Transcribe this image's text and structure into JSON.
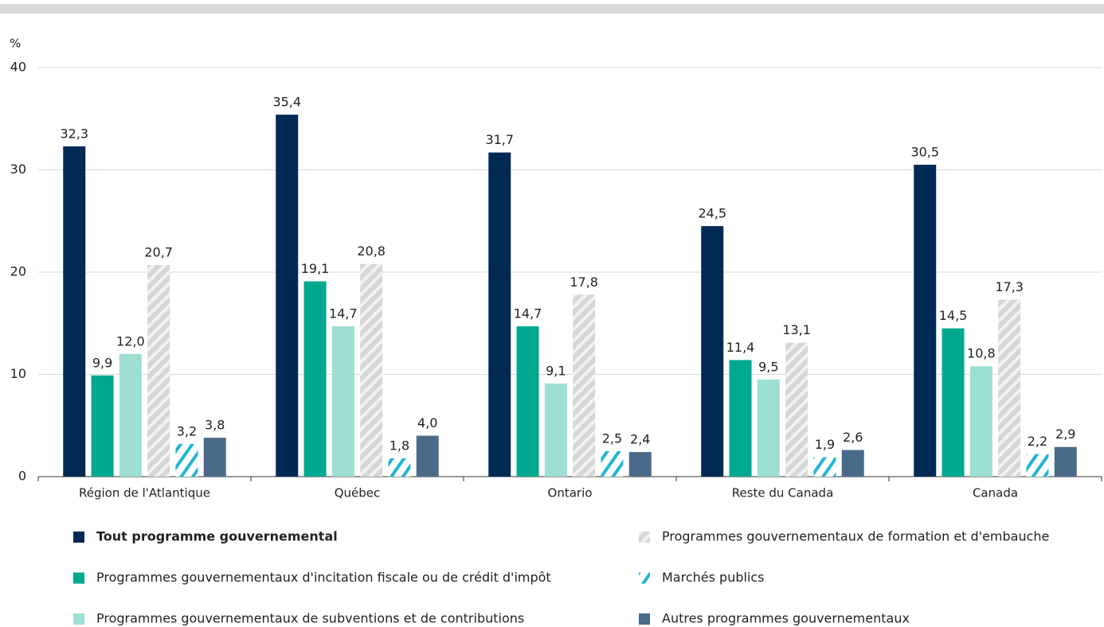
{
  "chart_data": {
    "type": "bar",
    "y_unit": "%",
    "categories": [
      "Région de l'Atlantique",
      "Québec",
      "Ontario",
      "Reste du Canada",
      "Canada"
    ],
    "series": [
      {
        "name": "Tout programme gouvernemental",
        "color": "#002a54",
        "values": [
          32.3,
          35.4,
          31.7,
          24.5,
          30.5
        ],
        "value_labels": [
          "32,3",
          "35,4",
          "31,7",
          "24,5",
          "30,5"
        ]
      },
      {
        "name": "Programmes gouvernementaux d'incitation fiscale ou de crédit d'impôt",
        "color": "#00a88f",
        "values": [
          9.9,
          19.1,
          14.7,
          11.4,
          14.5
        ],
        "value_labels": [
          "9,9",
          "19,1",
          "14,7",
          "11,4",
          "14,5"
        ]
      },
      {
        "name": "Programmes gouvernementaux de subventions et de contributions",
        "color": "#9ddfd3",
        "values": [
          12.0,
          14.7,
          9.1,
          9.5,
          10.8
        ],
        "value_labels": [
          "12,0",
          "14,7",
          "9,1",
          "9,5",
          "10,8"
        ]
      },
      {
        "name": "Programmes gouvernementaux de formation et d'embauche",
        "color": "#d6d6d6",
        "pattern": "hatch",
        "values": [
          20.7,
          20.8,
          17.8,
          13.1,
          17.3
        ],
        "value_labels": [
          "20,7",
          "20,8",
          "17,8",
          "13,1",
          "17,3"
        ]
      },
      {
        "name": "Marchés publics",
        "color": "#1fb6d4",
        "pattern": "hatch-open",
        "values": [
          3.2,
          1.8,
          2.5,
          1.9,
          2.2
        ],
        "value_labels": [
          "3,2",
          "1,8",
          "2,5",
          "1,9",
          "2,2"
        ]
      },
      {
        "name": "Autres programmes gouvernementaux",
        "color": "#4a6a8a",
        "values": [
          3.8,
          4.0,
          2.4,
          2.6,
          2.9
        ],
        "value_labels": [
          "3,8",
          "4,0",
          "2,4",
          "2,6",
          "2,9"
        ]
      }
    ],
    "ylim": [
      0,
      40
    ],
    "yticks": [
      0,
      10,
      20,
      30,
      40
    ],
    "grid": true
  }
}
